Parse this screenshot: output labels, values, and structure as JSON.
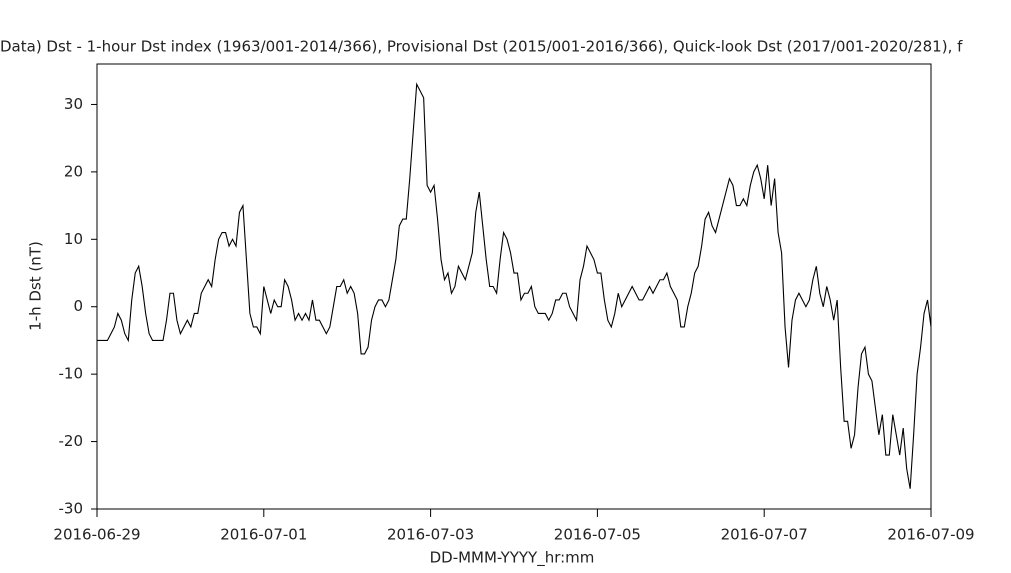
{
  "chart_data": {
    "type": "line",
    "title": "Data)  Dst - 1-hour Dst index (1963/001-2014/366), Provisional Dst (2015/001-2016/366), Quick-look Dst (2017/001-2020/281), f",
    "x_label": "DD-MMM-YYYY_hr:mm",
    "y_label": "1-h Dst (nT)",
    "xlim": [
      "2016-06-29",
      "2016-07-09"
    ],
    "xticks": [
      "2016-06-29",
      "2016-07-01",
      "2016-07-03",
      "2016-07-05",
      "2016-07-07",
      "2016-07-09"
    ],
    "ylim": [
      -30,
      36
    ],
    "yticks": [
      -30,
      -20,
      -10,
      0,
      10,
      20,
      30
    ],
    "color": "#000000",
    "x": [
      "2016-06-29 00:00",
      "2016-06-29 01:00",
      "2016-06-29 02:00",
      "2016-06-29 03:00",
      "2016-06-29 04:00",
      "2016-06-29 05:00",
      "2016-06-29 06:00",
      "2016-06-29 07:00",
      "2016-06-29 08:00",
      "2016-06-29 09:00",
      "2016-06-29 10:00",
      "2016-06-29 11:00",
      "2016-06-29 12:00",
      "2016-06-29 13:00",
      "2016-06-29 14:00",
      "2016-06-29 15:00",
      "2016-06-29 16:00",
      "2016-06-29 17:00",
      "2016-06-29 18:00",
      "2016-06-29 19:00",
      "2016-06-29 20:00",
      "2016-06-29 21:00",
      "2016-06-29 22:00",
      "2016-06-29 23:00",
      "2016-06-30 00:00",
      "2016-06-30 01:00",
      "2016-06-30 02:00",
      "2016-06-30 03:00",
      "2016-06-30 04:00",
      "2016-06-30 05:00",
      "2016-06-30 06:00",
      "2016-06-30 07:00",
      "2016-06-30 08:00",
      "2016-06-30 09:00",
      "2016-06-30 10:00",
      "2016-06-30 11:00",
      "2016-06-30 12:00",
      "2016-06-30 13:00",
      "2016-06-30 14:00",
      "2016-06-30 15:00",
      "2016-06-30 16:00",
      "2016-06-30 17:00",
      "2016-06-30 18:00",
      "2016-06-30 19:00",
      "2016-06-30 20:00",
      "2016-06-30 21:00",
      "2016-06-30 22:00",
      "2016-06-30 23:00",
      "2016-07-01 00:00",
      "2016-07-01 01:00",
      "2016-07-01 02:00",
      "2016-07-01 03:00",
      "2016-07-01 04:00",
      "2016-07-01 05:00",
      "2016-07-01 06:00",
      "2016-07-01 07:00",
      "2016-07-01 08:00",
      "2016-07-01 09:00",
      "2016-07-01 10:00",
      "2016-07-01 11:00",
      "2016-07-01 12:00",
      "2016-07-01 13:00",
      "2016-07-01 14:00",
      "2016-07-01 15:00",
      "2016-07-01 16:00",
      "2016-07-01 17:00",
      "2016-07-01 18:00",
      "2016-07-01 19:00",
      "2016-07-01 20:00",
      "2016-07-01 21:00",
      "2016-07-01 22:00",
      "2016-07-01 23:00",
      "2016-07-02 00:00",
      "2016-07-02 01:00",
      "2016-07-02 02:00",
      "2016-07-02 03:00",
      "2016-07-02 04:00",
      "2016-07-02 05:00",
      "2016-07-02 06:00",
      "2016-07-02 07:00",
      "2016-07-02 08:00",
      "2016-07-02 09:00",
      "2016-07-02 10:00",
      "2016-07-02 11:00",
      "2016-07-02 12:00",
      "2016-07-02 13:00",
      "2016-07-02 14:00",
      "2016-07-02 15:00",
      "2016-07-02 16:00",
      "2016-07-02 17:00",
      "2016-07-02 18:00",
      "2016-07-02 19:00",
      "2016-07-02 20:00",
      "2016-07-02 21:00",
      "2016-07-02 22:00",
      "2016-07-02 23:00",
      "2016-07-03 00:00",
      "2016-07-03 01:00",
      "2016-07-03 02:00",
      "2016-07-03 03:00",
      "2016-07-03 04:00",
      "2016-07-03 05:00",
      "2016-07-03 06:00",
      "2016-07-03 07:00",
      "2016-07-03 08:00",
      "2016-07-03 09:00",
      "2016-07-03 10:00",
      "2016-07-03 11:00",
      "2016-07-03 12:00",
      "2016-07-03 13:00",
      "2016-07-03 14:00",
      "2016-07-03 15:00",
      "2016-07-03 16:00",
      "2016-07-03 17:00",
      "2016-07-03 18:00",
      "2016-07-03 19:00",
      "2016-07-03 20:00",
      "2016-07-03 21:00",
      "2016-07-03 22:00",
      "2016-07-03 23:00",
      "2016-07-04 00:00",
      "2016-07-04 01:00",
      "2016-07-04 02:00",
      "2016-07-04 03:00",
      "2016-07-04 04:00",
      "2016-07-04 05:00",
      "2016-07-04 06:00",
      "2016-07-04 07:00",
      "2016-07-04 08:00",
      "2016-07-04 09:00",
      "2016-07-04 10:00",
      "2016-07-04 11:00",
      "2016-07-04 12:00",
      "2016-07-04 13:00",
      "2016-07-04 14:00",
      "2016-07-04 15:00",
      "2016-07-04 16:00",
      "2016-07-04 17:00",
      "2016-07-04 18:00",
      "2016-07-04 19:00",
      "2016-07-04 20:00",
      "2016-07-04 21:00",
      "2016-07-04 22:00",
      "2016-07-04 23:00",
      "2016-07-05 00:00",
      "2016-07-05 01:00",
      "2016-07-05 02:00",
      "2016-07-05 03:00",
      "2016-07-05 04:00",
      "2016-07-05 05:00",
      "2016-07-05 06:00",
      "2016-07-05 07:00",
      "2016-07-05 08:00",
      "2016-07-05 09:00",
      "2016-07-05 10:00",
      "2016-07-05 11:00",
      "2016-07-05 12:00",
      "2016-07-05 13:00",
      "2016-07-05 14:00",
      "2016-07-05 15:00",
      "2016-07-05 16:00",
      "2016-07-05 17:00",
      "2016-07-05 18:00",
      "2016-07-05 19:00",
      "2016-07-05 20:00",
      "2016-07-05 21:00",
      "2016-07-05 22:00",
      "2016-07-05 23:00",
      "2016-07-06 00:00",
      "2016-07-06 01:00",
      "2016-07-06 02:00",
      "2016-07-06 03:00",
      "2016-07-06 04:00",
      "2016-07-06 05:00",
      "2016-07-06 06:00",
      "2016-07-06 07:00",
      "2016-07-06 08:00",
      "2016-07-06 09:00",
      "2016-07-06 10:00",
      "2016-07-06 11:00",
      "2016-07-06 12:00",
      "2016-07-06 13:00",
      "2016-07-06 14:00",
      "2016-07-06 15:00",
      "2016-07-06 16:00",
      "2016-07-06 17:00",
      "2016-07-06 18:00",
      "2016-07-06 19:00",
      "2016-07-06 20:00",
      "2016-07-06 21:00",
      "2016-07-06 22:00",
      "2016-07-06 23:00",
      "2016-07-07 00:00",
      "2016-07-07 01:00",
      "2016-07-07 02:00",
      "2016-07-07 03:00",
      "2016-07-07 04:00",
      "2016-07-07 05:00",
      "2016-07-07 06:00",
      "2016-07-07 07:00",
      "2016-07-07 08:00",
      "2016-07-07 09:00",
      "2016-07-07 10:00",
      "2016-07-07 11:00",
      "2016-07-07 12:00",
      "2016-07-07 13:00",
      "2016-07-07 14:00",
      "2016-07-07 15:00",
      "2016-07-07 16:00",
      "2016-07-07 17:00",
      "2016-07-07 18:00",
      "2016-07-07 19:00",
      "2016-07-07 20:00",
      "2016-07-07 21:00",
      "2016-07-07 22:00",
      "2016-07-07 23:00",
      "2016-07-08 00:00",
      "2016-07-08 01:00",
      "2016-07-08 02:00",
      "2016-07-08 03:00",
      "2016-07-08 04:00",
      "2016-07-08 05:00",
      "2016-07-08 06:00",
      "2016-07-08 07:00",
      "2016-07-08 08:00",
      "2016-07-08 09:00",
      "2016-07-08 10:00",
      "2016-07-08 11:00",
      "2016-07-08 12:00",
      "2016-07-08 13:00",
      "2016-07-08 14:00",
      "2016-07-08 15:00",
      "2016-07-08 16:00",
      "2016-07-08 17:00",
      "2016-07-08 18:00",
      "2016-07-08 19:00",
      "2016-07-08 20:00",
      "2016-07-08 21:00",
      "2016-07-08 22:00",
      "2016-07-08 23:00",
      "2016-07-09 00:00"
    ],
    "values": [
      -5,
      -5,
      -5,
      -5,
      -4,
      -3,
      -1,
      -2,
      -4,
      -5,
      1,
      5,
      6,
      3,
      -1,
      -4,
      -5,
      -5,
      -5,
      -5,
      -2,
      2,
      2,
      -2,
      -4,
      -3,
      -2,
      -3,
      -1,
      -1,
      2,
      3,
      4,
      3,
      7,
      10,
      11,
      11,
      9,
      10,
      9,
      14,
      15,
      7,
      -1,
      -3,
      -3,
      -4,
      3,
      1,
      -1,
      1,
      0,
      0,
      4,
      3,
      1,
      -2,
      -1,
      -2,
      -1,
      -2,
      1,
      -2,
      -2,
      -3,
      -4,
      -3,
      0,
      3,
      3,
      4,
      2,
      3,
      2,
      -1,
      -7,
      -7,
      -6,
      -2,
      0,
      1,
      1,
      0,
      1,
      4,
      7,
      12,
      13,
      13,
      19,
      26,
      33,
      32,
      31,
      18,
      17,
      18,
      13,
      7,
      4,
      5,
      2,
      3,
      6,
      5,
      4,
      6,
      8,
      14,
      17,
      12,
      7,
      3,
      3,
      2,
      7,
      11,
      10,
      8,
      5,
      5,
      1,
      2,
      2,
      3,
      0,
      -1,
      -1,
      -1,
      -2,
      -1,
      1,
      1,
      2,
      2,
      0,
      -1,
      -2,
      4,
      6,
      9,
      8,
      7,
      5,
      5,
      1,
      -2,
      -3,
      -1,
      2,
      0,
      1,
      2,
      3,
      2,
      1,
      1,
      2,
      3,
      2,
      3,
      4,
      4,
      5,
      3,
      2,
      1,
      -3,
      -3,
      0,
      2,
      5,
      6,
      9,
      13,
      14,
      12,
      11,
      13,
      15,
      17,
      19,
      18,
      15,
      15,
      16,
      15,
      18,
      20,
      21,
      19,
      16,
      21,
      15,
      19,
      11,
      8,
      -3,
      -9,
      -2,
      1,
      2,
      1,
      0,
      1,
      4,
      6,
      2,
      0,
      3,
      1,
      -2,
      1,
      -9,
      -17,
      -17,
      -21,
      -19,
      -12,
      -7,
      -6,
      -10,
      -11,
      -15,
      -19,
      -16,
      -22,
      -22,
      -16,
      -19,
      -22,
      -18,
      -24,
      -27,
      -19,
      -10,
      -6,
      -1,
      1,
      -3
    ]
  }
}
